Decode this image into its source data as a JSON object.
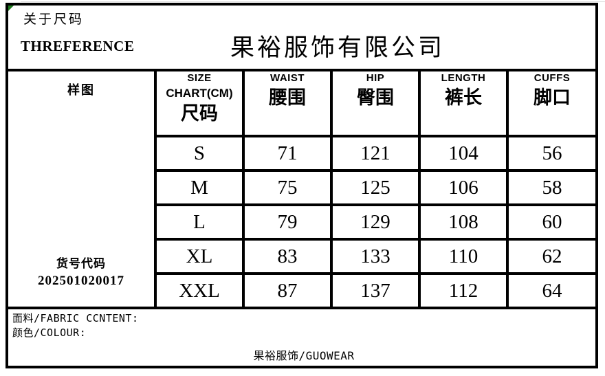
{
  "header": {
    "about_note": "关于尺码",
    "brand": "THREFERENCE",
    "company_title": "果裕服饰有限公司"
  },
  "table": {
    "left_panel": {
      "sample_label": "样图",
      "item_code_label": "货号代码",
      "item_code": "202501020017"
    },
    "columns": [
      {
        "en": "SIZE",
        "en2": "CHART(CM)",
        "zh": "尺码"
      },
      {
        "en": "WAIST",
        "zh": "腰围"
      },
      {
        "en": "HIP",
        "zh": "臀围"
      },
      {
        "en": "LENGTH",
        "zh": "裤长"
      },
      {
        "en": "CUFFS",
        "zh": "脚口"
      }
    ],
    "rows": [
      {
        "size": "S",
        "waist": "71",
        "hip": "121",
        "length": "104",
        "cuffs": "56"
      },
      {
        "size": "M",
        "waist": "75",
        "hip": "125",
        "length": "106",
        "cuffs": "58"
      },
      {
        "size": "L",
        "waist": "79",
        "hip": "129",
        "length": "108",
        "cuffs": "60"
      },
      {
        "size": "XL",
        "waist": "83",
        "hip": "133",
        "length": "110",
        "cuffs": "62"
      },
      {
        "size": "XXL",
        "waist": "87",
        "hip": "137",
        "length": "112",
        "cuffs": "64"
      }
    ]
  },
  "footer": {
    "fabric_label": "面料/FABRIC CCNTENT:",
    "colour_label": "颜色/COLOUR:",
    "brand_line": "果裕服饰/GUOWEAR"
  },
  "colors": {
    "border": "#000000",
    "background": "#ffffff",
    "marker_green": "#1e7a1e"
  }
}
